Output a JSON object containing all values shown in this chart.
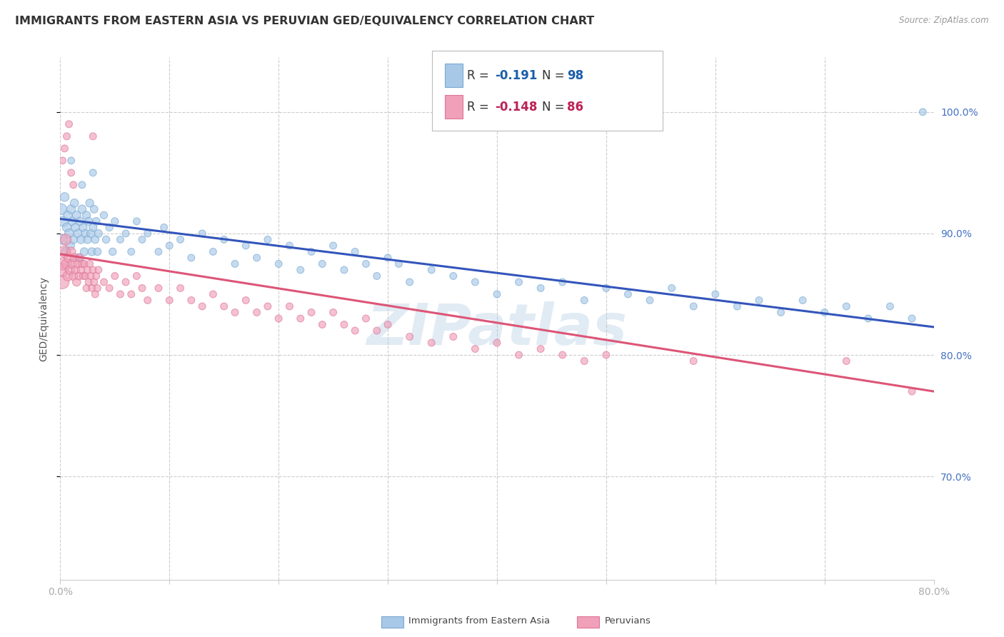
{
  "title": "IMMIGRANTS FROM EASTERN ASIA VS PERUVIAN GED/EQUIVALENCY CORRELATION CHART",
  "source": "Source: ZipAtlas.com",
  "ylabel": "GED/Equivalency",
  "ytick_labels": [
    "70.0%",
    "80.0%",
    "90.0%",
    "100.0%"
  ],
  "ytick_values": [
    0.7,
    0.8,
    0.9,
    1.0
  ],
  "xmin": 0.0,
  "xmax": 0.8,
  "ymin": 0.615,
  "ymax": 1.045,
  "blue_scatter_x": [
    0.001,
    0.002,
    0.003,
    0.004,
    0.005,
    0.006,
    0.007,
    0.008,
    0.009,
    0.01,
    0.011,
    0.012,
    0.013,
    0.014,
    0.015,
    0.016,
    0.017,
    0.018,
    0.019,
    0.02,
    0.021,
    0.022,
    0.023,
    0.024,
    0.025,
    0.026,
    0.027,
    0.028,
    0.029,
    0.03,
    0.031,
    0.032,
    0.033,
    0.034,
    0.035,
    0.04,
    0.042,
    0.045,
    0.048,
    0.05,
    0.055,
    0.06,
    0.065,
    0.07,
    0.075,
    0.08,
    0.09,
    0.095,
    0.1,
    0.11,
    0.12,
    0.13,
    0.14,
    0.15,
    0.16,
    0.17,
    0.18,
    0.19,
    0.2,
    0.21,
    0.22,
    0.23,
    0.24,
    0.25,
    0.26,
    0.27,
    0.28,
    0.29,
    0.3,
    0.31,
    0.32,
    0.34,
    0.36,
    0.38,
    0.4,
    0.42,
    0.44,
    0.46,
    0.48,
    0.5,
    0.52,
    0.54,
    0.56,
    0.58,
    0.6,
    0.62,
    0.64,
    0.66,
    0.68,
    0.7,
    0.72,
    0.74,
    0.76,
    0.78,
    0.01,
    0.02,
    0.03,
    0.79
  ],
  "blue_scatter_y": [
    0.92,
    0.895,
    0.91,
    0.93,
    0.885,
    0.905,
    0.915,
    0.9,
    0.89,
    0.92,
    0.91,
    0.895,
    0.925,
    0.905,
    0.915,
    0.9,
    0.88,
    0.91,
    0.895,
    0.92,
    0.905,
    0.885,
    0.9,
    0.915,
    0.895,
    0.91,
    0.925,
    0.9,
    0.885,
    0.905,
    0.92,
    0.895,
    0.91,
    0.885,
    0.9,
    0.915,
    0.895,
    0.905,
    0.885,
    0.91,
    0.895,
    0.9,
    0.885,
    0.91,
    0.895,
    0.9,
    0.885,
    0.905,
    0.89,
    0.895,
    0.88,
    0.9,
    0.885,
    0.895,
    0.875,
    0.89,
    0.88,
    0.895,
    0.875,
    0.89,
    0.87,
    0.885,
    0.875,
    0.89,
    0.87,
    0.885,
    0.875,
    0.865,
    0.88,
    0.875,
    0.86,
    0.87,
    0.865,
    0.86,
    0.85,
    0.86,
    0.855,
    0.86,
    0.845,
    0.855,
    0.85,
    0.845,
    0.855,
    0.84,
    0.85,
    0.84,
    0.845,
    0.835,
    0.845,
    0.835,
    0.84,
    0.83,
    0.84,
    0.83,
    0.96,
    0.94,
    0.95,
    1.0
  ],
  "blue_scatter_sizes": [
    120,
    100,
    100,
    80,
    80,
    80,
    80,
    80,
    80,
    80,
    70,
    70,
    70,
    70,
    70,
    70,
    70,
    70,
    70,
    70,
    65,
    65,
    65,
    65,
    65,
    65,
    65,
    65,
    65,
    65,
    60,
    60,
    60,
    60,
    60,
    55,
    55,
    55,
    55,
    55,
    50,
    50,
    50,
    50,
    50,
    50,
    50,
    50,
    50,
    50,
    50,
    50,
    50,
    50,
    50,
    50,
    50,
    50,
    50,
    50,
    50,
    50,
    50,
    50,
    50,
    50,
    50,
    50,
    50,
    50,
    50,
    50,
    50,
    50,
    50,
    50,
    50,
    50,
    50,
    50,
    50,
    50,
    50,
    50,
    50,
    50,
    50,
    50,
    50,
    50,
    50,
    50,
    50,
    50,
    50,
    50,
    50,
    50
  ],
  "pink_scatter_x": [
    0.001,
    0.002,
    0.003,
    0.004,
    0.005,
    0.006,
    0.007,
    0.008,
    0.009,
    0.01,
    0.011,
    0.012,
    0.013,
    0.014,
    0.015,
    0.016,
    0.017,
    0.018,
    0.019,
    0.02,
    0.021,
    0.022,
    0.023,
    0.024,
    0.025,
    0.026,
    0.027,
    0.028,
    0.029,
    0.03,
    0.031,
    0.032,
    0.033,
    0.034,
    0.035,
    0.04,
    0.045,
    0.05,
    0.055,
    0.06,
    0.065,
    0.07,
    0.075,
    0.08,
    0.09,
    0.1,
    0.11,
    0.12,
    0.13,
    0.14,
    0.15,
    0.16,
    0.17,
    0.18,
    0.19,
    0.2,
    0.21,
    0.22,
    0.23,
    0.24,
    0.25,
    0.26,
    0.27,
    0.28,
    0.29,
    0.3,
    0.32,
    0.34,
    0.36,
    0.38,
    0.4,
    0.42,
    0.44,
    0.46,
    0.48,
    0.5,
    0.002,
    0.004,
    0.006,
    0.008,
    0.01,
    0.012,
    0.58,
    0.72,
    0.78,
    0.03
  ],
  "pink_scatter_y": [
    0.87,
    0.86,
    0.875,
    0.885,
    0.895,
    0.875,
    0.865,
    0.88,
    0.87,
    0.885,
    0.875,
    0.865,
    0.88,
    0.87,
    0.86,
    0.875,
    0.865,
    0.88,
    0.87,
    0.875,
    0.865,
    0.875,
    0.865,
    0.855,
    0.87,
    0.86,
    0.875,
    0.865,
    0.855,
    0.87,
    0.86,
    0.85,
    0.865,
    0.855,
    0.87,
    0.86,
    0.855,
    0.865,
    0.85,
    0.86,
    0.85,
    0.865,
    0.855,
    0.845,
    0.855,
    0.845,
    0.855,
    0.845,
    0.84,
    0.85,
    0.84,
    0.835,
    0.845,
    0.835,
    0.84,
    0.83,
    0.84,
    0.83,
    0.835,
    0.825,
    0.835,
    0.825,
    0.82,
    0.83,
    0.82,
    0.825,
    0.815,
    0.81,
    0.815,
    0.805,
    0.81,
    0.8,
    0.805,
    0.8,
    0.795,
    0.8,
    0.96,
    0.97,
    0.98,
    0.99,
    0.95,
    0.94,
    0.795,
    0.795,
    0.77,
    0.98
  ],
  "pink_scatter_sizes": [
    200,
    180,
    160,
    140,
    120,
    110,
    100,
    100,
    90,
    85,
    80,
    75,
    72,
    70,
    68,
    65,
    62,
    60,
    58,
    55,
    53,
    52,
    51,
    50,
    50,
    50,
    50,
    50,
    50,
    50,
    50,
    50,
    50,
    50,
    50,
    50,
    50,
    50,
    50,
    50,
    50,
    50,
    50,
    50,
    50,
    50,
    50,
    50,
    50,
    50,
    50,
    50,
    50,
    50,
    50,
    50,
    50,
    50,
    50,
    50,
    50,
    50,
    50,
    50,
    50,
    50,
    50,
    50,
    50,
    50,
    50,
    50,
    50,
    50,
    50,
    50,
    50,
    50,
    50,
    50,
    50,
    50,
    50,
    50,
    50,
    50
  ],
  "blue_line_x0": 0.0,
  "blue_line_x1": 0.8,
  "blue_line_y0": 0.912,
  "blue_line_y1": 0.823,
  "pink_line_x0": 0.0,
  "pink_line_x1": 0.8,
  "pink_line_y0": 0.883,
  "pink_line_y1": 0.77,
  "blue_color": "#a8c8e8",
  "pink_color": "#f0a0b8",
  "blue_line_color": "#3355bb",
  "pink_line_color": "#dd5577",
  "scatter_alpha": 0.65,
  "grid_color": "#cccccc",
  "grid_style": "--",
  "background_color": "#ffffff",
  "title_fontsize": 11.5,
  "tick_color": "#4472c4",
  "xtick_color": "#aaaaaa",
  "legend_r_color_blue": "#1a5faa",
  "legend_r_color_pink": "#bb2255",
  "legend_n_color_blue": "#1a5faa",
  "legend_n_color_pink": "#bb2255",
  "watermark_text": "ZIPatlas",
  "watermark_color": "#aac8e0",
  "watermark_alpha": 0.35,
  "watermark_fontsize": 58
}
